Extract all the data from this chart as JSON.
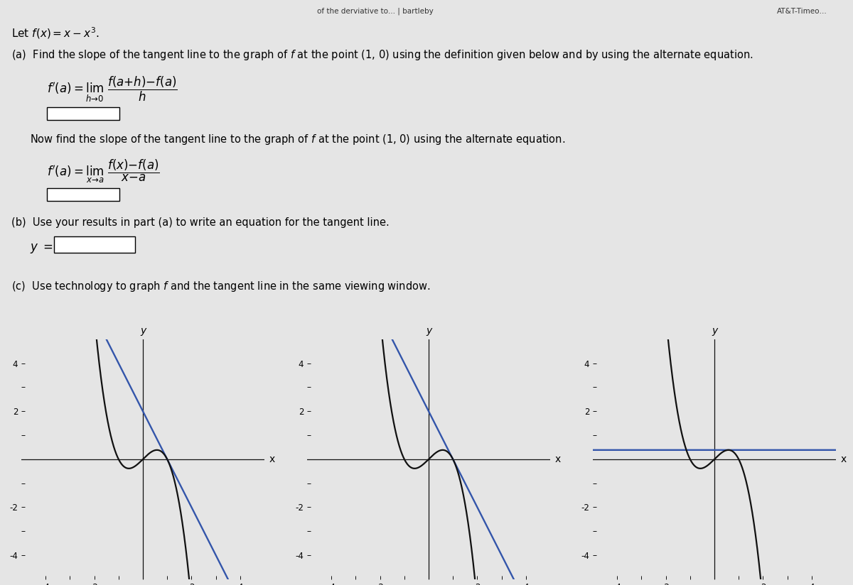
{
  "bg_color": "#e5e5e5",
  "text_color": "#000000",
  "curve_color": "#111111",
  "tangent_color_1": "#3355aa",
  "tangent_color_2": "#3355aa",
  "tangent_color_3": "#3355aa",
  "graph1_xlim": [
    -5,
    5
  ],
  "graph1_ylim": [
    -5,
    5
  ],
  "graph2_xlim": [
    -5,
    5
  ],
  "graph2_ylim": [
    -5,
    5
  ],
  "graph3_xlim": [
    -5,
    5
  ],
  "graph3_ylim": [
    -5,
    5
  ],
  "tangent1_slope": -2,
  "tangent1_intercept": 2,
  "tangent2_slope": -2,
  "tangent2_intercept": 2,
  "tangent3_slope": 0.0,
  "tangent3_intercept": 0.385,
  "browser_bar_color": "#cccccc",
  "browser_text": "of the derviative to... | bartleby",
  "browser_right_text": "AT&T-Timeo…"
}
